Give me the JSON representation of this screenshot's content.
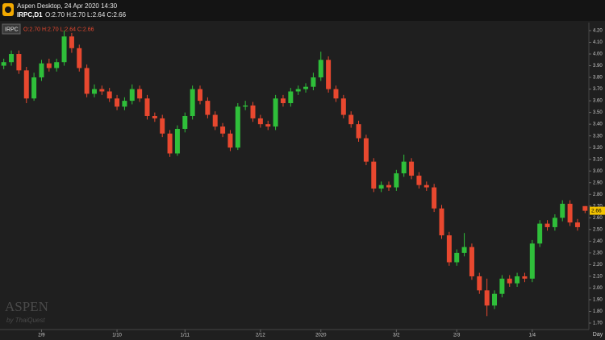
{
  "header": {
    "app_title": "Aspen Desktop, 24 Apr 2020 14:30",
    "symbol": "IRPC,D1",
    "ohlc": "O:2.70 H:2.70 L:2.64 C:2.66"
  },
  "chart_data": {
    "type": "candlestick",
    "symbol": "IRPC",
    "ohlc_label": "O:2.70 H:2.70 L:2.64 C:2.66",
    "watermark": "ASPEN",
    "watermark_sub": "by ThaiQuest",
    "x_label": "Day",
    "up_color": "#2fbf3a",
    "down_color": "#e8482f",
    "tag_color": "#f2c200",
    "categories": [
      null,
      null,
      null,
      null,
      null,
      "2/9",
      null,
      null,
      null,
      null,
      null,
      null,
      null,
      null,
      null,
      "1/10",
      null,
      null,
      null,
      null,
      null,
      null,
      null,
      null,
      "1/11",
      null,
      null,
      null,
      null,
      null,
      null,
      null,
      null,
      null,
      "2/12",
      null,
      null,
      null,
      null,
      null,
      null,
      null,
      "2020",
      null,
      null,
      null,
      null,
      null,
      null,
      null,
      null,
      null,
      "3/2",
      null,
      null,
      null,
      null,
      null,
      null,
      null,
      "2/3",
      null,
      null,
      null,
      null,
      null,
      null,
      null,
      null,
      null,
      "1/4",
      null,
      null,
      null,
      null,
      null,
      null,
      null
    ],
    "open": [
      3.9,
      3.93,
      4.0,
      3.86,
      3.62,
      3.8,
      3.92,
      3.88,
      3.93,
      4.15,
      4.05,
      3.88,
      3.66,
      3.7,
      3.68,
      3.62,
      3.55,
      3.6,
      3.7,
      3.62,
      3.47,
      3.45,
      3.32,
      3.15,
      3.36,
      3.47,
      3.7,
      3.6,
      3.48,
      3.38,
      3.32,
      3.2,
      3.55,
      3.56,
      3.45,
      3.4,
      3.38,
      3.62,
      3.58,
      3.68,
      3.7,
      3.72,
      3.8,
      3.95,
      3.7,
      3.62,
      3.48,
      3.4,
      3.28,
      3.08,
      2.85,
      2.88,
      2.86,
      2.98,
      3.08,
      2.96,
      2.88,
      2.86,
      2.68,
      2.45,
      2.22,
      2.3,
      2.35,
      2.1,
      1.98,
      1.85,
      1.95,
      2.08,
      2.04,
      2.1,
      2.08,
      2.38,
      2.55,
      2.52,
      2.6,
      2.72,
      2.56,
      2.7
    ],
    "high": [
      3.96,
      4.03,
      4.03,
      3.89,
      3.84,
      3.95,
      3.96,
      3.96,
      4.2,
      4.18,
      4.08,
      3.91,
      3.74,
      3.73,
      3.71,
      3.65,
      3.63,
      3.74,
      3.73,
      3.65,
      3.5,
      3.48,
      3.35,
      3.39,
      3.5,
      3.73,
      3.73,
      3.63,
      3.51,
      3.41,
      3.35,
      3.58,
      3.6,
      3.59,
      3.48,
      3.43,
      3.65,
      3.65,
      3.71,
      3.73,
      3.75,
      3.84,
      4.02,
      3.98,
      3.73,
      3.65,
      3.51,
      3.43,
      3.31,
      3.11,
      2.91,
      2.91,
      3.01,
      3.14,
      3.11,
      2.99,
      2.91,
      2.89,
      2.71,
      2.48,
      2.33,
      2.47,
      2.38,
      2.13,
      2.08,
      1.98,
      2.11,
      2.11,
      2.13,
      2.13,
      2.41,
      2.58,
      2.58,
      2.63,
      2.75,
      2.75,
      2.59,
      2.7
    ],
    "low": [
      3.87,
      3.9,
      3.83,
      3.58,
      3.6,
      3.77,
      3.85,
      3.85,
      3.9,
      4.01,
      3.85,
      3.63,
      3.63,
      3.65,
      3.59,
      3.52,
      3.52,
      3.57,
      3.59,
      3.44,
      3.42,
      3.29,
      3.12,
      3.13,
      3.33,
      3.44,
      3.57,
      3.45,
      3.35,
      3.29,
      3.17,
      3.18,
      3.52,
      3.42,
      3.37,
      3.35,
      3.35,
      3.55,
      3.55,
      3.65,
      3.67,
      3.69,
      3.77,
      3.67,
      3.59,
      3.45,
      3.37,
      3.25,
      3.05,
      2.82,
      2.82,
      2.83,
      2.83,
      2.95,
      2.93,
      2.85,
      2.83,
      2.65,
      2.42,
      2.19,
      2.19,
      2.27,
      2.07,
      1.95,
      1.76,
      1.82,
      1.92,
      2.01,
      2.01,
      2.05,
      2.05,
      2.35,
      2.49,
      2.49,
      2.57,
      2.53,
      2.49,
      2.64
    ],
    "close": [
      3.93,
      4.0,
      3.86,
      3.62,
      3.8,
      3.92,
      3.88,
      3.93,
      4.15,
      4.05,
      3.88,
      3.66,
      3.7,
      3.68,
      3.62,
      3.55,
      3.6,
      3.7,
      3.62,
      3.47,
      3.45,
      3.32,
      3.15,
      3.36,
      3.47,
      3.7,
      3.6,
      3.48,
      3.38,
      3.32,
      3.2,
      3.55,
      3.56,
      3.45,
      3.4,
      3.38,
      3.62,
      3.58,
      3.68,
      3.7,
      3.72,
      3.8,
      3.95,
      3.7,
      3.62,
      3.48,
      3.4,
      3.28,
      3.08,
      2.85,
      2.88,
      2.86,
      2.98,
      3.08,
      2.96,
      2.88,
      2.86,
      2.68,
      2.45,
      2.22,
      2.3,
      2.35,
      2.1,
      1.98,
      1.85,
      1.95,
      2.08,
      2.04,
      2.1,
      2.08,
      2.38,
      2.55,
      2.52,
      2.6,
      2.72,
      2.56,
      2.52,
      2.66
    ],
    "ylim": [
      1.645,
      4.255
    ],
    "yticks": [
      {
        "value": 1.7,
        "label": "1.70"
      },
      {
        "value": 1.8,
        "label": "1.80"
      },
      {
        "value": 1.9,
        "label": "1.90"
      },
      {
        "value": 2.0,
        "label": "2.00"
      },
      {
        "value": 2.1,
        "label": "2.10"
      },
      {
        "value": 2.2,
        "label": "2.20"
      },
      {
        "value": 2.3,
        "label": "2.30"
      },
      {
        "value": 2.4,
        "label": "2.40"
      },
      {
        "value": 2.5,
        "label": "2.50"
      },
      {
        "value": 2.6,
        "label": "2.60"
      },
      {
        "value": 2.7,
        "label": "2.70"
      },
      {
        "value": 2.8,
        "label": "2.80"
      },
      {
        "value": 2.9,
        "label": "2.90"
      },
      {
        "value": 3.0,
        "label": "3.00"
      },
      {
        "value": 3.1,
        "label": "3.10"
      },
      {
        "value": 3.2,
        "label": "3.20"
      },
      {
        "value": 3.3,
        "label": "3.30"
      },
      {
        "value": 3.4,
        "label": "3.40"
      },
      {
        "value": 3.5,
        "label": "3.50"
      },
      {
        "value": 3.6,
        "label": "3.60"
      },
      {
        "value": 3.7,
        "label": "3.70"
      },
      {
        "value": 3.8,
        "label": "3.80"
      },
      {
        "value": 3.9,
        "label": "3.90"
      },
      {
        "value": 4.0,
        "label": "4.00"
      },
      {
        "value": 4.1,
        "label": "4.10"
      },
      {
        "value": 4.2,
        "label": "4.20"
      }
    ],
    "grid": false
  }
}
